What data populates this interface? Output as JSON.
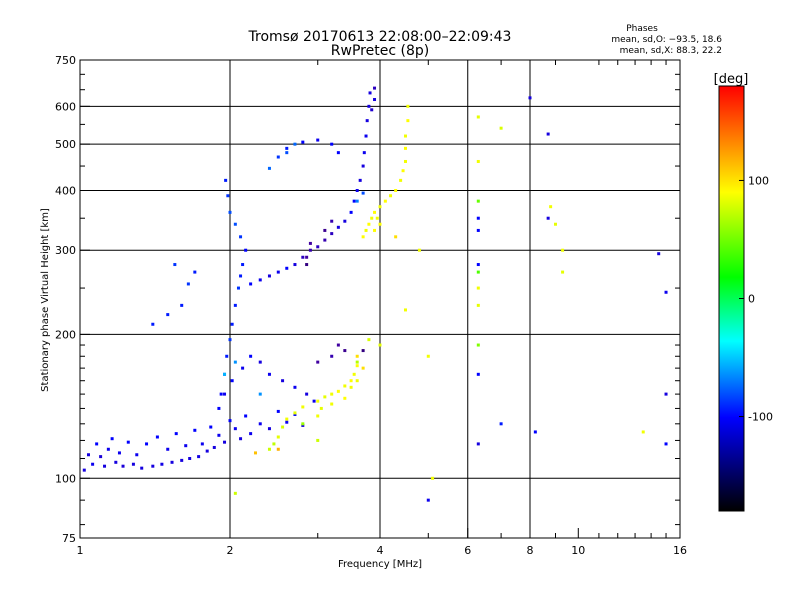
{
  "chart_data": {
    "type": "scatter",
    "title": "Tromsø 20170613 22:08:00–22:09:43",
    "subtitle": "RwPretec (8p)",
    "xlabel": "Frequency [MHz]",
    "ylabel": "Stationary phase Virtual Height [km]",
    "x_scale": "log",
    "y_scale": "log",
    "xlim": [
      1,
      16
    ],
    "ylim": [
      75,
      750
    ],
    "x_ticks": [
      1,
      2,
      4,
      6,
      8,
      10,
      16
    ],
    "y_ticks": [
      75,
      100,
      200,
      300,
      400,
      500,
      600,
      750
    ],
    "x_gridlines": [
      2,
      4,
      6,
      8
    ],
    "y_gridlines": [
      100,
      200,
      300,
      400,
      500,
      600
    ],
    "grid": true,
    "stats": {
      "heading": "Phases",
      "o_line": "mean, sd,O: −93.5, 18.6",
      "x_line": "mean, sd,X: 88.3, 22.2"
    },
    "colorbar": {
      "label": "[deg]",
      "range": [
        -180,
        180
      ],
      "ticks": [
        100,
        0,
        -100
      ],
      "colors": [
        "#ff0000",
        "#ffff00",
        "#00ff00",
        "#00ffff",
        "#0000ff",
        "#000000"
      ]
    },
    "series": [
      {
        "points": [
          [
            1.02,
            104,
            -110
          ],
          [
            1.04,
            112,
            -110
          ],
          [
            1.06,
            107,
            -105
          ],
          [
            1.08,
            118,
            -100
          ],
          [
            1.1,
            111,
            -112
          ],
          [
            1.12,
            106,
            -110
          ],
          [
            1.14,
            115,
            -105
          ],
          [
            1.16,
            121,
            -100
          ],
          [
            1.18,
            108,
            -110
          ],
          [
            1.2,
            113,
            -105
          ],
          [
            1.22,
            106,
            -112
          ],
          [
            1.25,
            119,
            -100
          ],
          [
            1.28,
            107,
            -110
          ],
          [
            1.3,
            112,
            -105
          ],
          [
            1.33,
            105,
            -110
          ],
          [
            1.36,
            118,
            -100
          ],
          [
            1.4,
            106,
            -110
          ],
          [
            1.43,
            122,
            -100
          ],
          [
            1.46,
            107,
            -108
          ],
          [
            1.5,
            115,
            -105
          ],
          [
            1.53,
            108,
            -110
          ],
          [
            1.56,
            124,
            -100
          ],
          [
            1.6,
            109,
            -110
          ],
          [
            1.63,
            117,
            -105
          ],
          [
            1.66,
            110,
            -110
          ],
          [
            1.7,
            126,
            -100
          ],
          [
            1.73,
            111,
            -108
          ],
          [
            1.76,
            118,
            -105
          ],
          [
            1.8,
            114,
            -110
          ],
          [
            1.83,
            128,
            -100
          ],
          [
            1.86,
            116,
            -110
          ],
          [
            1.9,
            123,
            -105
          ],
          [
            1.95,
            119,
            -110
          ],
          [
            2.0,
            132,
            -100
          ],
          [
            2.05,
            127,
            -105
          ],
          [
            2.1,
            121,
            -110
          ],
          [
            2.15,
            135,
            -100
          ],
          [
            2.2,
            124,
            -105
          ],
          [
            2.3,
            130,
            -105
          ],
          [
            2.4,
            127,
            -110
          ],
          [
            2.5,
            138,
            -100
          ],
          [
            2.6,
            131,
            -105
          ],
          [
            2.7,
            136,
            -100
          ],
          [
            2.8,
            129,
            -110
          ],
          [
            1.9,
            140,
            -100
          ],
          [
            1.92,
            150,
            -100
          ],
          [
            1.95,
            165,
            -95
          ],
          [
            1.97,
            180,
            -95
          ],
          [
            2.0,
            195,
            -90
          ],
          [
            2.02,
            210,
            -95
          ],
          [
            2.05,
            230,
            -95
          ],
          [
            2.08,
            250,
            -90
          ],
          [
            2.1,
            265,
            -95
          ],
          [
            2.12,
            280,
            -95
          ],
          [
            2.15,
            300,
            -100
          ],
          [
            2.1,
            320,
            -90
          ],
          [
            2.05,
            340,
            -85
          ],
          [
            2.0,
            360,
            -85
          ],
          [
            1.98,
            390,
            -90
          ],
          [
            1.96,
            420,
            -95
          ],
          [
            1.95,
            150,
            -105
          ],
          [
            2.02,
            160,
            -100
          ],
          [
            2.12,
            170,
            -105
          ],
          [
            2.2,
            180,
            -100
          ],
          [
            2.3,
            175,
            -110
          ],
          [
            2.4,
            165,
            -105
          ],
          [
            2.55,
            160,
            -110
          ],
          [
            2.7,
            155,
            -105
          ],
          [
            2.85,
            150,
            -110
          ],
          [
            2.95,
            145,
            -105
          ],
          [
            2.2,
            255,
            -100
          ],
          [
            2.3,
            260,
            -105
          ],
          [
            2.4,
            265,
            -110
          ],
          [
            2.5,
            270,
            -105
          ],
          [
            2.6,
            275,
            -100
          ],
          [
            2.7,
            280,
            -110
          ],
          [
            2.8,
            290,
            -120
          ],
          [
            2.9,
            300,
            -125
          ],
          [
            3.0,
            305,
            -120
          ],
          [
            3.1,
            315,
            -125
          ],
          [
            3.2,
            325,
            -120
          ],
          [
            3.3,
            335,
            -110
          ],
          [
            3.4,
            345,
            -110
          ],
          [
            3.5,
            360,
            -100
          ],
          [
            3.55,
            380,
            -100
          ],
          [
            3.6,
            400,
            -105
          ],
          [
            3.65,
            420,
            -110
          ],
          [
            3.7,
            450,
            -110
          ],
          [
            3.72,
            480,
            -105
          ],
          [
            3.75,
            520,
            -105
          ],
          [
            3.77,
            560,
            -110
          ],
          [
            3.8,
            600,
            -110
          ],
          [
            3.82,
            640,
            -110
          ],
          [
            3.3,
            480,
            -100
          ],
          [
            3.2,
            500,
            -100
          ],
          [
            3.0,
            510,
            -105
          ],
          [
            2.8,
            505,
            -100
          ],
          [
            2.6,
            490,
            -95
          ],
          [
            2.5,
            470,
            -90
          ],
          [
            1.4,
            210,
            -95
          ],
          [
            1.5,
            220,
            -95
          ],
          [
            1.6,
            230,
            -95
          ],
          [
            1.65,
            255,
            -90
          ],
          [
            1.7,
            270,
            -95
          ],
          [
            1.55,
            280,
            -90
          ],
          [
            3.0,
            175,
            -130
          ],
          [
            3.2,
            180,
            -125
          ],
          [
            3.3,
            190,
            -130
          ],
          [
            3.4,
            185,
            -135
          ],
          [
            3.9,
            655,
            -120
          ],
          [
            3.9,
            620,
            -110
          ],
          [
            3.85,
            590,
            -115
          ],
          [
            2.85,
            290,
            -130
          ],
          [
            2.9,
            310,
            -130
          ],
          [
            3.1,
            330,
            -135
          ],
          [
            3.2,
            345,
            -125
          ],
          [
            8.0,
            625,
            -110
          ],
          [
            8.7,
            525,
            -110
          ],
          [
            15.0,
            245,
            -105
          ],
          [
            14.5,
            295,
            -110
          ],
          [
            15.0,
            150,
            -110
          ],
          [
            15.0,
            118,
            -100
          ],
          [
            6.3,
            118,
            -110
          ],
          [
            8.2,
            125,
            -100
          ],
          [
            7.0,
            130,
            -95
          ],
          [
            6.3,
            165,
            -100
          ],
          [
            6.3,
            280,
            -100
          ],
          [
            5.0,
            90,
            -105
          ],
          [
            6.3,
            330,
            -100
          ],
          [
            6.3,
            350,
            -100
          ],
          [
            8.7,
            350,
            -110
          ],
          [
            2.6,
            480,
            -85
          ],
          [
            2.7,
            500,
            -80
          ],
          [
            3.6,
            380,
            -75
          ],
          [
            3.7,
            395,
            -85
          ],
          [
            2.85,
            280,
            -140
          ],
          [
            3.7,
            185,
            -140
          ],
          [
            2.4,
            445,
            -80
          ],
          [
            2.3,
            150,
            -70
          ],
          [
            1.95,
            165,
            -60
          ],
          [
            2.05,
            175,
            -70
          ]
        ]
      },
      {
        "points": [
          [
            2.4,
            115,
            80
          ],
          [
            2.45,
            118,
            75
          ],
          [
            2.5,
            122,
            90
          ],
          [
            2.55,
            128,
            85
          ],
          [
            2.6,
            133,
            95
          ],
          [
            2.7,
            137,
            90
          ],
          [
            2.8,
            141,
            95
          ],
          [
            3.0,
            145,
            95
          ],
          [
            3.1,
            148,
            90
          ],
          [
            3.2,
            150,
            95
          ],
          [
            3.3,
            152,
            100
          ],
          [
            3.4,
            156,
            95
          ],
          [
            3.5,
            160,
            100
          ],
          [
            3.55,
            165,
            95
          ],
          [
            3.6,
            172,
            100
          ],
          [
            3.0,
            135,
            95
          ],
          [
            3.05,
            140,
            90
          ],
          [
            3.2,
            143,
            95
          ],
          [
            3.4,
            147,
            100
          ],
          [
            3.5,
            155,
            95
          ],
          [
            3.7,
            320,
            100
          ],
          [
            3.75,
            330,
            95
          ],
          [
            3.8,
            340,
            100
          ],
          [
            3.85,
            350,
            95
          ],
          [
            3.9,
            360,
            100
          ],
          [
            4.0,
            370,
            95
          ],
          [
            4.1,
            380,
            100
          ],
          [
            4.2,
            390,
            95
          ],
          [
            4.3,
            400,
            100
          ],
          [
            4.4,
            420,
            95
          ],
          [
            4.45,
            440,
            100
          ],
          [
            4.5,
            460,
            95
          ],
          [
            4.5,
            490,
            100
          ],
          [
            4.5,
            520,
            95
          ],
          [
            4.55,
            560,
            100
          ],
          [
            4.55,
            600,
            95
          ],
          [
            3.9,
            330,
            100
          ],
          [
            4.0,
            340,
            100
          ],
          [
            3.95,
            350,
            95
          ],
          [
            6.3,
            570,
            90
          ],
          [
            7.0,
            540,
            85
          ],
          [
            8.8,
            370,
            95
          ],
          [
            9.0,
            340,
            90
          ],
          [
            9.3,
            300,
            95
          ],
          [
            6.3,
            460,
            95
          ],
          [
            6.3,
            250,
            95
          ],
          [
            6.3,
            230,
            90
          ],
          [
            4.8,
            300,
            95
          ],
          [
            5.0,
            180,
            95
          ],
          [
            5.1,
            100,
            95
          ],
          [
            2.05,
            93,
            80
          ],
          [
            3.8,
            195,
            85
          ],
          [
            4.0,
            190,
            90
          ],
          [
            4.5,
            225,
            95
          ],
          [
            9.3,
            270,
            90
          ],
          [
            13.5,
            125,
            95
          ],
          [
            3.6,
            160,
            95
          ],
          [
            6.3,
            380,
            40
          ],
          [
            6.3,
            190,
            50
          ],
          [
            6.3,
            270,
            30
          ],
          [
            4.3,
            320,
            110
          ],
          [
            3.6,
            180,
            110
          ],
          [
            2.25,
            113,
            120
          ],
          [
            2.5,
            115,
            125
          ],
          [
            3.7,
            170,
            110
          ],
          [
            3.0,
            120,
            80
          ],
          [
            3.6,
            175,
            70
          ],
          [
            2.8,
            130,
            60
          ]
        ]
      }
    ]
  }
}
